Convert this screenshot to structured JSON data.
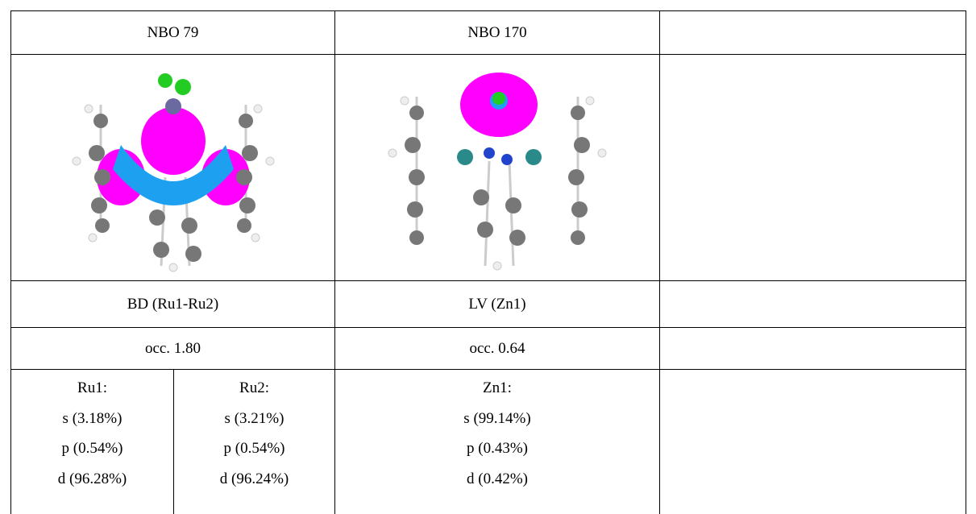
{
  "table": {
    "headers": [
      "NBO 79",
      "NBO 170"
    ],
    "orbitals": [
      "BD (Ru1-Ru2)",
      "LV (Zn1)"
    ],
    "occupancies": [
      "occ. 1.80",
      "occ. 0.64"
    ],
    "compositions": [
      {
        "atom": "Ru1:",
        "lines": [
          "s (3.18%)",
          "p (0.54%)",
          "d (96.28%)"
        ]
      },
      {
        "atom": "Ru2:",
        "lines": [
          "s (3.21%)",
          "p (0.54%)",
          "d (96.24%)"
        ]
      },
      {
        "atom": "Zn1:",
        "lines": [
          "s (99.14%)",
          "p (0.43%)",
          "d (0.42%)"
        ]
      }
    ]
  }
}
